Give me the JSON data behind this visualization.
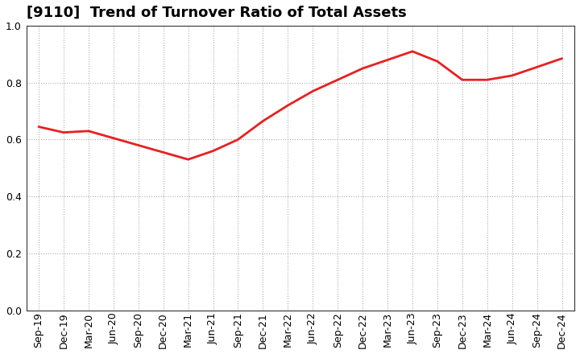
{
  "title": "[9110]  Trend of Turnover Ratio of Total Assets",
  "x_labels": [
    "Sep-19",
    "Dec-19",
    "Mar-20",
    "Jun-20",
    "Sep-20",
    "Dec-20",
    "Mar-21",
    "Jun-21",
    "Sep-21",
    "Dec-21",
    "Mar-22",
    "Jun-22",
    "Sep-22",
    "Dec-22",
    "Mar-23",
    "Jun-23",
    "Sep-23",
    "Dec-23",
    "Mar-24",
    "Jun-24",
    "Sep-24",
    "Dec-24"
  ],
  "y_values": [
    0.645,
    0.625,
    0.63,
    0.605,
    0.58,
    0.555,
    0.53,
    0.56,
    0.6,
    0.665,
    0.72,
    0.77,
    0.81,
    0.85,
    0.88,
    0.91,
    0.875,
    0.81,
    0.81,
    0.825,
    0.855,
    0.885
  ],
  "line_color": "#e82020",
  "background_color": "#ffffff",
  "plot_bg_color": "#ffffff",
  "grid_color": "#999999",
  "ylim": [
    0.0,
    1.0
  ],
  "yticks": [
    0.0,
    0.2,
    0.4,
    0.6,
    0.8,
    1.0
  ],
  "title_fontsize": 13,
  "tick_fontsize": 9,
  "line_width": 2.0
}
